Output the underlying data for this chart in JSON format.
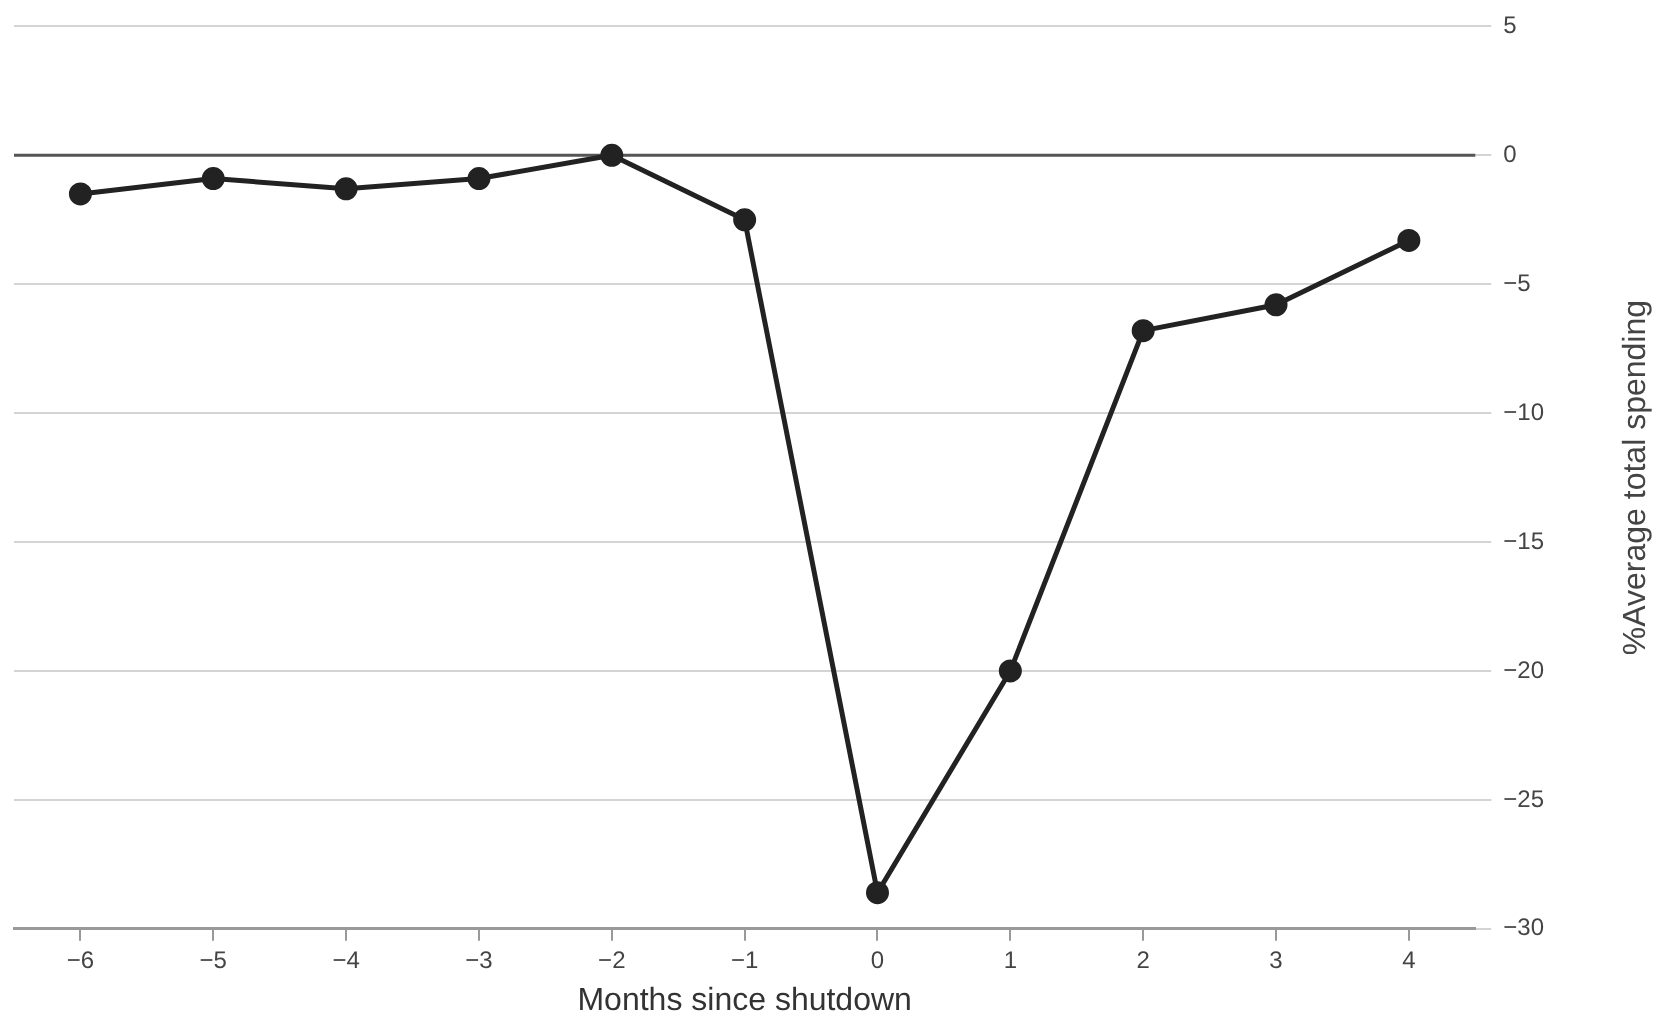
{
  "chart_data": {
    "type": "line",
    "xlabel": "Months since shutdown",
    "ylabel": "%Average total spending",
    "x": [
      -6,
      -5,
      -4,
      -3,
      -2,
      -1,
      0,
      1,
      2,
      3,
      4
    ],
    "series": [
      {
        "color": "#222222",
        "values": [
          -1.5,
          -0.9,
          -1.3,
          -0.9,
          0,
          -2.5,
          -28.6,
          -20,
          -6.8,
          -5.8,
          -3.3
        ]
      }
    ],
    "xlim": [
      -6.5,
      4.5
    ],
    "xticks": [
      {
        "value": -6,
        "label": "−6"
      },
      {
        "value": -5,
        "label": "−5"
      },
      {
        "value": -4,
        "label": "−4"
      },
      {
        "value": -3,
        "label": "−3"
      },
      {
        "value": -2,
        "label": "−2"
      },
      {
        "value": -1,
        "label": "−1"
      },
      0,
      1,
      2,
      3,
      4
    ],
    "ylim": [
      -30,
      5
    ],
    "yticks": [
      {
        "value": -30,
        "label": "−30"
      },
      {
        "value": -25,
        "label": "−25"
      },
      {
        "value": -20,
        "label": "−20"
      },
      {
        "value": -15,
        "label": "−15"
      },
      {
        "value": -10,
        "label": "−10"
      },
      {
        "value": -5,
        "label": "−5"
      },
      0,
      5
    ],
    "ref_lines": [
      {
        "axis": "y",
        "value": 0,
        "color": "#555555"
      }
    ],
    "grid": "y",
    "legend": false,
    "marker": "circle",
    "line_style": "solid"
  }
}
